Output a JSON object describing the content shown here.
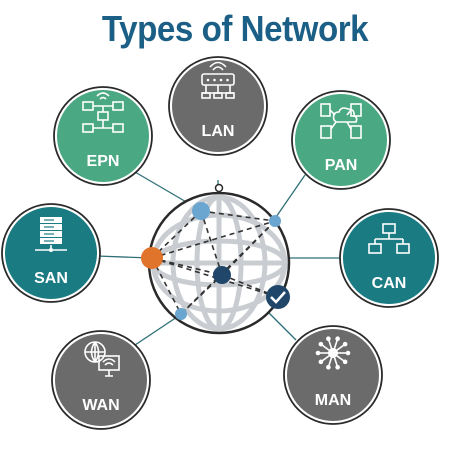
{
  "title": "Types of Network",
  "colors": {
    "title": "#1c5f86",
    "gray": "#6b6b6b",
    "teal_dark": "#1a7b83",
    "green": "#4aa882",
    "connector": "#2e6f77",
    "accent_orange": "#e0742a",
    "accent_blue": "#6aa6cf",
    "accent_navy": "#20476a"
  },
  "nodes": [
    {
      "id": "lan",
      "label": "LAN",
      "icon": "network-switch-icon",
      "color": "gray"
    },
    {
      "id": "pan",
      "label": "PAN",
      "icon": "cloud-devices-icon",
      "color": "green"
    },
    {
      "id": "can",
      "label": "CAN",
      "icon": "campus-network-icon",
      "color": "teal_dark"
    },
    {
      "id": "man",
      "label": "MAN",
      "icon": "hub-spoke-icon",
      "color": "gray"
    },
    {
      "id": "wan",
      "label": "WAN",
      "icon": "globe-computer-icon",
      "color": "gray"
    },
    {
      "id": "san",
      "label": "SAN",
      "icon": "server-rack-icon",
      "color": "teal_dark"
    },
    {
      "id": "epn",
      "label": "EPN",
      "icon": "flowchart-icon",
      "color": "green"
    }
  ],
  "center": {
    "icon": "globe-network-icon"
  }
}
